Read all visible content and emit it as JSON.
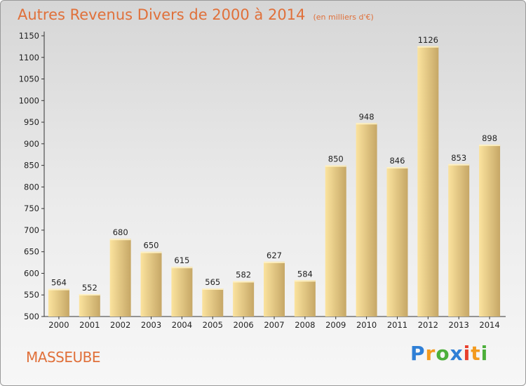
{
  "chart_data": {
    "type": "bar",
    "title": "Autres Revenus Divers de 2000 à 2014",
    "subtitle": "(en milliers d'€)",
    "categories": [
      "2000",
      "2001",
      "2002",
      "2003",
      "2004",
      "2005",
      "2006",
      "2007",
      "2008",
      "2009",
      "2010",
      "2011",
      "2012",
      "2013",
      "2014"
    ],
    "values": [
      564,
      552,
      680,
      650,
      615,
      565,
      582,
      627,
      584,
      850,
      948,
      846,
      1126,
      853,
      898
    ],
    "ylim": [
      500,
      1150
    ],
    "yticks": [
      500,
      550,
      600,
      650,
      700,
      750,
      800,
      850,
      900,
      950,
      1000,
      1050,
      1100,
      1150
    ],
    "grid": false,
    "colors": {
      "bar_light": "#fbe39e",
      "bar_dark": "#c6a766",
      "text_accent": "#e0703a"
    }
  },
  "location": "MASSEUBE",
  "brand": {
    "name": "Proxiti",
    "letters": [
      {
        "ch": "P",
        "color": "#2f7fd6"
      },
      {
        "ch": "r",
        "color": "#f39a1e"
      },
      {
        "ch": "o",
        "color": "#4caf3a"
      },
      {
        "ch": "x",
        "color": "#2f7fd6"
      },
      {
        "ch": "i",
        "color": "#e8402e"
      },
      {
        "ch": "t",
        "color": "#f39a1e"
      },
      {
        "ch": "i",
        "color": "#4caf3a"
      }
    ]
  }
}
